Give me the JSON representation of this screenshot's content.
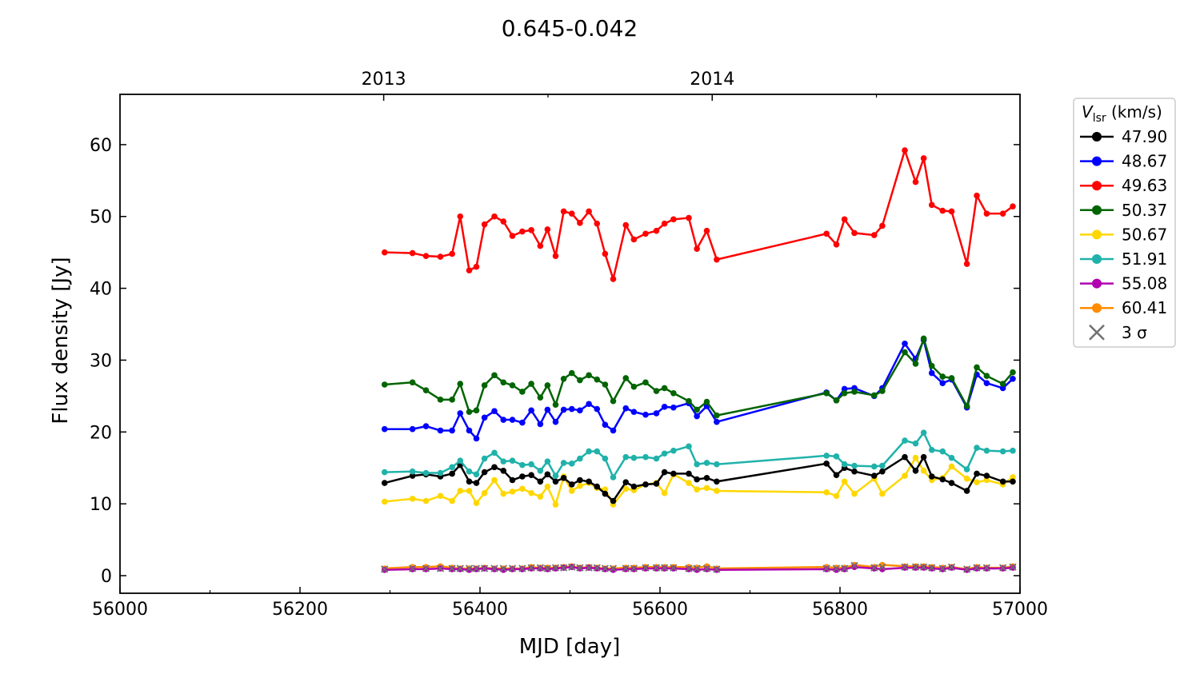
{
  "chart_data": {
    "type": "line",
    "title": "0.645-0.042",
    "xlabel": "MJD [day]",
    "ylabel": "Flux density [Jy]",
    "xlim": [
      56000,
      57000
    ],
    "ylim": [
      -2.45,
      67
    ],
    "xticks": [
      56000,
      56200,
      56400,
      56600,
      56800,
      57000
    ],
    "yticks": [
      0,
      10,
      20,
      30,
      40,
      50,
      60
    ],
    "top_axis": {
      "ticks": [
        {
          "label": "2013",
          "mjd": 56293
        },
        {
          "label": "2014",
          "mjd": 56658
        }
      ]
    },
    "legend": {
      "title_main": "V",
      "title_sub": "lsr",
      "title_unit": " (km/s)",
      "placement": "outside-right",
      "sigma_label": "3 σ"
    },
    "x": [
      56294,
      56325,
      56340,
      56356,
      56369,
      56378,
      56388,
      56396,
      56405,
      56416,
      56426,
      56436,
      56447,
      56457,
      56467,
      56475,
      56484,
      56493,
      56502,
      56511,
      56521,
      56530,
      56539,
      56548,
      56562,
      56571,
      56584,
      56596,
      56605,
      56615,
      56632,
      56641,
      56652,
      56663,
      56785,
      56796,
      56805,
      56816,
      56838,
      56847,
      56872,
      56884,
      56893,
      56902,
      56914,
      56924,
      56941,
      56952,
      56963,
      56981,
      56992
    ],
    "series": [
      {
        "name": "47.90",
        "color": "#000000",
        "values": [
          12.9,
          13.9,
          14.1,
          13.8,
          14.2,
          15.4,
          13.1,
          12.9,
          14.4,
          15.1,
          14.6,
          13.3,
          13.8,
          14.0,
          13.1,
          14.1,
          13.1,
          13.6,
          12.7,
          13.3,
          13.1,
          12.4,
          11.4,
          10.4,
          13.0,
          12.4,
          12.7,
          12.8,
          14.4,
          14.2,
          14.2,
          13.4,
          13.6,
          13.1,
          15.6,
          14.0,
          15.0,
          14.5,
          13.9,
          14.5,
          16.5,
          14.6,
          16.5,
          13.8,
          13.4,
          12.9,
          11.8,
          14.2,
          13.9,
          13.1,
          13.1
        ]
      },
      {
        "name": "48.67",
        "color": "#0000ff",
        "values": [
          20.4,
          20.4,
          20.8,
          20.2,
          20.2,
          22.6,
          20.2,
          19.1,
          22.0,
          22.9,
          21.7,
          21.7,
          21.3,
          23.0,
          21.1,
          23.1,
          21.4,
          23.1,
          23.2,
          23.0,
          23.9,
          23.2,
          21.0,
          20.2,
          23.3,
          22.8,
          22.4,
          22.6,
          23.5,
          23.4,
          24.0,
          22.2,
          23.6,
          21.4,
          25.5,
          24.4,
          26.0,
          26.1,
          25.0,
          26.1,
          32.3,
          30.2,
          32.8,
          28.2,
          26.8,
          27.3,
          23.4,
          28.0,
          26.8,
          26.1,
          27.4
        ]
      },
      {
        "name": "49.63",
        "color": "#ff0000",
        "values": [
          45.0,
          44.9,
          44.5,
          44.4,
          44.8,
          50.0,
          42.5,
          43.0,
          48.9,
          50.0,
          49.3,
          47.3,
          47.9,
          48.1,
          45.9,
          48.2,
          44.5,
          50.7,
          50.4,
          49.1,
          50.7,
          49.0,
          44.8,
          41.3,
          48.8,
          46.8,
          47.6,
          48.0,
          49.0,
          49.6,
          49.8,
          45.5,
          48.0,
          44.0,
          47.6,
          46.1,
          49.6,
          47.7,
          47.4,
          48.7,
          59.2,
          54.8,
          58.1,
          51.6,
          50.8,
          50.7,
          43.4,
          52.9,
          50.4,
          50.4,
          51.4
        ]
      },
      {
        "name": "50.37",
        "color": "#006400",
        "values": [
          26.6,
          26.9,
          25.8,
          24.5,
          24.5,
          26.7,
          22.8,
          23.0,
          26.5,
          27.9,
          26.9,
          26.5,
          25.6,
          26.7,
          24.8,
          26.5,
          23.8,
          27.4,
          28.2,
          27.2,
          27.9,
          27.3,
          26.6,
          24.3,
          27.5,
          26.3,
          26.9,
          25.7,
          26.1,
          25.4,
          24.3,
          23.1,
          24.2,
          22.3,
          25.4,
          24.4,
          25.4,
          25.6,
          25.1,
          25.7,
          31.1,
          29.5,
          33.0,
          29.2,
          27.7,
          27.5,
          23.6,
          29.0,
          27.8,
          26.7,
          28.3
        ]
      },
      {
        "name": "50.67",
        "color": "#ffd700",
        "values": [
          10.3,
          10.7,
          10.4,
          11.1,
          10.4,
          11.8,
          11.8,
          10.1,
          11.5,
          13.3,
          11.4,
          11.7,
          12.1,
          11.5,
          11.0,
          12.4,
          9.9,
          13.8,
          11.8,
          12.5,
          12.9,
          12.2,
          12.0,
          9.9,
          12.1,
          11.9,
          12.7,
          12.9,
          11.5,
          14.1,
          12.9,
          12.0,
          12.2,
          11.8,
          11.6,
          11.1,
          13.1,
          11.4,
          13.5,
          11.4,
          13.9,
          16.4,
          14.6,
          13.3,
          13.6,
          15.2,
          13.5,
          13.0,
          13.3,
          12.7,
          13.7
        ]
      },
      {
        "name": "51.91",
        "color": "#20b2aa",
        "values": [
          14.4,
          14.5,
          14.3,
          14.3,
          15.1,
          16.0,
          14.5,
          14.1,
          16.3,
          17.1,
          15.9,
          16.0,
          15.4,
          15.5,
          14.6,
          15.9,
          13.9,
          15.7,
          15.6,
          16.3,
          17.3,
          17.3,
          16.3,
          13.7,
          16.5,
          16.4,
          16.5,
          16.3,
          17.0,
          17.4,
          18.0,
          15.5,
          15.7,
          15.5,
          16.7,
          16.6,
          15.5,
          15.3,
          15.2,
          15.3,
          18.8,
          18.4,
          19.9,
          17.5,
          17.3,
          16.4,
          14.8,
          17.8,
          17.4,
          17.3,
          17.4
        ]
      },
      {
        "name": "55.08",
        "color": "#b000b0",
        "values": [
          0.8,
          0.9,
          0.9,
          1.0,
          0.9,
          0.9,
          0.8,
          0.9,
          1.0,
          0.9,
          0.8,
          0.9,
          0.9,
          1.0,
          1.0,
          0.9,
          1.0,
          1.1,
          1.2,
          1.0,
          1.1,
          1.0,
          0.9,
          0.8,
          0.9,
          0.9,
          1.0,
          1.0,
          1.0,
          1.0,
          0.9,
          0.8,
          0.9,
          0.8,
          0.9,
          0.8,
          0.9,
          1.2,
          1.0,
          0.9,
          1.1,
          1.1,
          1.1,
          1.0,
          0.9,
          1.1,
          0.8,
          1.0,
          1.0,
          1.0,
          1.1
        ]
      },
      {
        "name": "60.41",
        "color": "#ff8c00",
        "values": [
          1.0,
          1.2,
          1.2,
          1.3,
          1.1,
          1.0,
          1.0,
          1.0,
          1.1,
          1.0,
          1.0,
          1.0,
          1.0,
          1.2,
          1.1,
          1.1,
          1.1,
          1.2,
          1.3,
          1.1,
          1.2,
          1.1,
          1.0,
          1.0,
          1.1,
          1.1,
          1.2,
          1.2,
          1.2,
          1.2,
          1.2,
          1.1,
          1.3,
          1.0,
          1.2,
          1.1,
          1.1,
          1.5,
          1.2,
          1.5,
          1.3,
          1.3,
          1.3,
          1.2,
          1.1,
          1.2,
          0.9,
          1.2,
          1.1,
          1.1,
          1.3
        ]
      }
    ],
    "sigma3": {
      "color": "#707070",
      "values": [
        0.9,
        1.0,
        1.0,
        1.0,
        1.0,
        1.0,
        1.0,
        1.0,
        1.0,
        1.0,
        1.0,
        1.0,
        1.0,
        1.1,
        1.1,
        1.0,
        1.1,
        1.1,
        1.2,
        1.1,
        1.1,
        1.1,
        1.0,
        1.0,
        1.0,
        1.0,
        1.1,
        1.1,
        1.1,
        1.1,
        1.0,
        1.0,
        1.0,
        0.9,
        1.0,
        1.0,
        1.0,
        1.4,
        1.1,
        1.2,
        1.2,
        1.2,
        1.2,
        1.1,
        1.0,
        1.2,
        0.9,
        1.1,
        1.1,
        1.1,
        1.2
      ]
    }
  }
}
